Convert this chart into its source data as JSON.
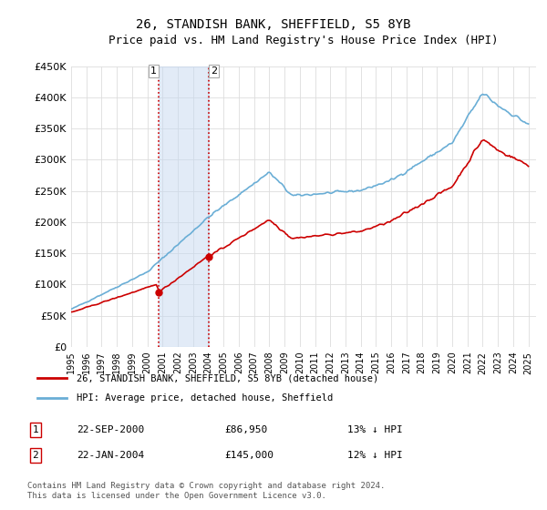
{
  "title": "26, STANDISH BANK, SHEFFIELD, S5 8YB",
  "subtitle": "Price paid vs. HM Land Registry's House Price Index (HPI)",
  "ylabel": "",
  "ylim": [
    0,
    450000
  ],
  "yticks": [
    0,
    50000,
    100000,
    150000,
    200000,
    250000,
    300000,
    350000,
    400000,
    450000
  ],
  "ytick_labels": [
    "£0",
    "£50K",
    "£100K",
    "£150K",
    "£200K",
    "£250K",
    "£300K",
    "£350K",
    "£400K",
    "£450K"
  ],
  "hpi_color": "#6aaed6",
  "price_color": "#cc0000",
  "sale1_date": 2000.72,
  "sale1_price": 86950,
  "sale1_label": "22-SEP-2000",
  "sale1_pct": "13% ↓ HPI",
  "sale2_date": 2004.05,
  "sale2_price": 145000,
  "sale2_label": "22-JAN-2004",
  "sale2_pct": "12% ↓ HPI",
  "legend_line1": "26, STANDISH BANK, SHEFFIELD, S5 8YB (detached house)",
  "legend_line2": "HPI: Average price, detached house, Sheffield",
  "footer": "Contains HM Land Registry data © Crown copyright and database right 2024.\nThis data is licensed under the Open Government Licence v3.0.",
  "shade_color": "#c6d9f0",
  "vline_color": "#cc0000",
  "background_color": "#ffffff"
}
